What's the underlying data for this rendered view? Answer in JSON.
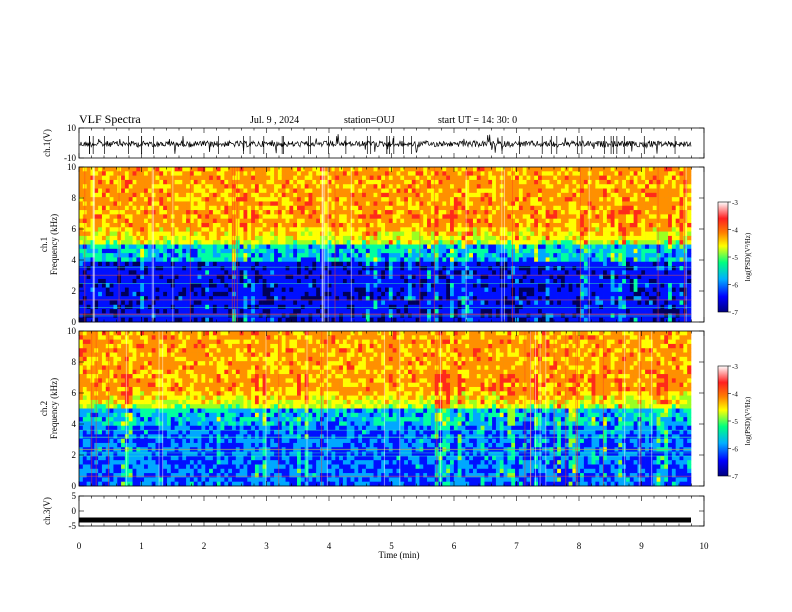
{
  "header": {
    "title": "VLF Spectra",
    "date": "Jul. 9 , 2024",
    "station": "station=OUJ",
    "start_ut": "start UT =  14: 30: 0"
  },
  "chart_data": [
    {
      "id": "ch1_waveform",
      "type": "line",
      "ylabel": "ch.1(V)",
      "ylim": [
        -10,
        10
      ],
      "yticks": [
        "10",
        "-10"
      ],
      "xlim": [
        0,
        10
      ],
      "series": [
        {
          "color": "#000000",
          "baseline": 0,
          "description_values": [
            -5,
            5
          ]
        }
      ]
    },
    {
      "id": "ch1_spectrogram",
      "type": "heatmap",
      "ylabel_top": "ch.1",
      "ylabel": "Frequency (kHz)",
      "ylim": [
        0,
        10
      ],
      "yticks": [
        "0",
        "2",
        "4",
        "6",
        "8",
        "10"
      ],
      "xlim": [
        0,
        9.82
      ],
      "colorbar": {
        "label": "log(PSD)(V²/Hz)",
        "range": [
          -7,
          -3
        ],
        "ticks": [
          "-3",
          "-4",
          "-5",
          "-6",
          "-7"
        ],
        "colors": [
          "#000080",
          "#0000ff",
          "#00c0ff",
          "#00ff80",
          "#ffff00",
          "#ff6000",
          "#ff2020",
          "#ffffff"
        ]
      }
    },
    {
      "id": "ch2_spectrogram",
      "type": "heatmap",
      "ylabel_top": "ch.2",
      "ylabel": "Frequency (kHz)",
      "ylim": [
        0,
        10
      ],
      "yticks": [
        "0",
        "2",
        "4",
        "6",
        "8",
        "10"
      ],
      "xlim": [
        0,
        9.82
      ],
      "colorbar": {
        "label": "log(PSD)(V²/Hz)",
        "range": [
          -7,
          -3
        ],
        "ticks": [
          "-3",
          "-4",
          "-5",
          "-6",
          "-7"
        ],
        "colors": [
          "#000080",
          "#0000ff",
          "#00c0ff",
          "#00ff80",
          "#ffff00",
          "#ff6000",
          "#ff2020",
          "#ffffff"
        ]
      }
    },
    {
      "id": "ch3_waveform",
      "type": "line",
      "ylabel": "ch.3(V)",
      "ylim": [
        -5,
        5
      ],
      "yticks": [
        "5",
        "0",
        "-5"
      ],
      "xlim": [
        0,
        10
      ],
      "series": [
        {
          "color": "#000000",
          "values": [
            -3,
            -3
          ]
        }
      ]
    }
  ],
  "xaxis": {
    "label": "Time (min)",
    "range": [
      0,
      10
    ],
    "ticks": [
      "0",
      "1",
      "2",
      "3",
      "4",
      "5",
      "6",
      "7",
      "8",
      "9",
      "10"
    ]
  }
}
